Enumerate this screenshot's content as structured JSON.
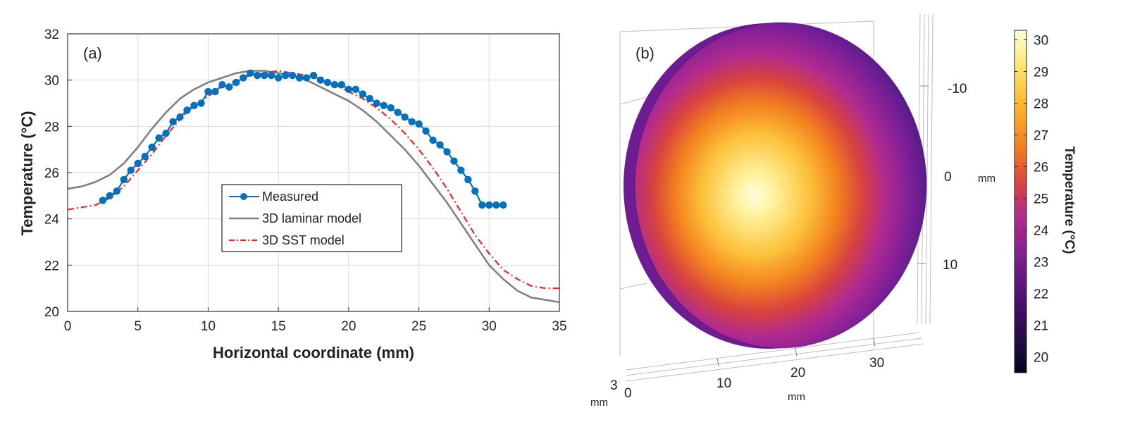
{
  "chart_data": [
    {
      "panel": "(a)",
      "type": "line",
      "xlabel": "Horizontal coordinate (mm)",
      "ylabel": "Temperature (°C)",
      "xlim": [
        0,
        35
      ],
      "ylim": [
        20,
        32
      ],
      "xticks": [
        0,
        5,
        10,
        15,
        20,
        25,
        30,
        35
      ],
      "yticks": [
        20,
        22,
        24,
        26,
        28,
        30,
        32
      ],
      "grid": true,
      "legend_position": "center",
      "series": [
        {
          "name": "Measured",
          "style": "line-markers",
          "color": "#0072BD",
          "x": [
            2.5,
            3.0,
            3.5,
            4.0,
            4.5,
            5.0,
            5.5,
            6.0,
            6.5,
            7.0,
            7.5,
            8.0,
            8.5,
            9.0,
            9.5,
            10.0,
            10.5,
            11.0,
            11.5,
            12.0,
            12.5,
            13.0,
            13.5,
            14.0,
            14.5,
            15.0,
            15.5,
            16.0,
            16.5,
            17.0,
            17.5,
            18.0,
            18.5,
            19.0,
            19.5,
            20.0,
            20.5,
            21.0,
            21.5,
            22.0,
            22.5,
            23.0,
            23.5,
            24.0,
            24.5,
            25.0,
            25.5,
            26.0,
            26.5,
            27.0,
            27.5,
            28.0,
            28.5,
            29.0,
            29.5,
            30.0,
            30.5,
            31.0
          ],
          "y": [
            24.8,
            25.0,
            25.2,
            25.7,
            26.1,
            26.4,
            26.7,
            27.1,
            27.5,
            27.7,
            28.2,
            28.4,
            28.7,
            28.9,
            29.0,
            29.5,
            29.5,
            29.8,
            29.7,
            29.9,
            30.1,
            30.3,
            30.2,
            30.2,
            30.2,
            30.1,
            30.2,
            30.2,
            30.1,
            30.1,
            30.2,
            30.0,
            29.9,
            29.8,
            29.8,
            29.6,
            29.6,
            29.4,
            29.2,
            29.0,
            28.9,
            28.8,
            28.6,
            28.4,
            28.2,
            28.1,
            27.8,
            27.4,
            27.2,
            26.9,
            26.5,
            26.1,
            25.7,
            25.2,
            24.6,
            24.6,
            24.6,
            24.6
          ]
        },
        {
          "name": "3D laminar model",
          "style": "solid",
          "color": "#808080",
          "x": [
            0,
            1,
            2,
            3,
            4,
            5,
            6,
            7,
            8,
            9,
            10,
            11,
            12,
            13,
            14,
            15,
            16,
            17,
            18,
            19,
            20,
            21,
            22,
            23,
            24,
            25,
            26,
            27,
            28,
            29,
            30,
            31,
            32,
            33,
            34,
            35
          ],
          "y": [
            25.3,
            25.4,
            25.6,
            25.9,
            26.4,
            27.1,
            27.9,
            28.6,
            29.2,
            29.6,
            29.9,
            30.1,
            30.3,
            30.4,
            30.4,
            30.3,
            30.2,
            30.0,
            29.7,
            29.4,
            29.1,
            28.7,
            28.2,
            27.6,
            27.0,
            26.3,
            25.5,
            24.7,
            23.8,
            22.9,
            22.0,
            21.4,
            20.9,
            20.6,
            20.5,
            20.4
          ]
        },
        {
          "name": "3D SST model",
          "style": "dash-dot",
          "color": "#FF2020",
          "x": [
            0,
            1,
            2,
            3,
            4,
            5,
            6,
            7,
            8,
            9,
            10,
            11,
            12,
            13,
            14,
            15,
            16,
            17,
            18,
            19,
            20,
            21,
            22,
            23,
            24,
            25,
            26,
            27,
            28,
            29,
            30,
            31,
            32,
            33,
            34,
            35
          ],
          "y": [
            24.4,
            24.5,
            24.6,
            24.9,
            25.4,
            26.1,
            26.8,
            27.6,
            28.3,
            28.9,
            29.3,
            29.7,
            30.0,
            30.2,
            30.3,
            30.4,
            30.3,
            30.2,
            30.0,
            29.8,
            29.5,
            29.2,
            28.8,
            28.3,
            27.7,
            27.0,
            26.2,
            25.3,
            24.3,
            23.3,
            22.5,
            21.8,
            21.4,
            21.1,
            21.0,
            21.0
          ]
        }
      ]
    },
    {
      "panel": "(b)",
      "type": "heatmap",
      "colormap": "inferno-like",
      "colorbar": {
        "label": "Temperature (°C)",
        "range": [
          19.5,
          30.3
        ],
        "ticks": [
          20,
          21,
          22,
          23,
          24,
          25,
          26,
          27,
          28,
          29,
          30
        ]
      },
      "axes": {
        "right_ticks": [
          "-10",
          "0",
          "10"
        ],
        "right_label": "mm",
        "bottom_ticks": [
          "10",
          "20",
          "30"
        ],
        "bottom_label": "mm",
        "depth_ticks": [
          "3",
          "0"
        ],
        "depth_label": "mm"
      },
      "colors": {
        "hot": "#FCFFA4",
        "mid": "#F98C0A",
        "warm": "#B12A90",
        "cool": "#5C1E91",
        "cold": "#1B0C41"
      }
    }
  ]
}
